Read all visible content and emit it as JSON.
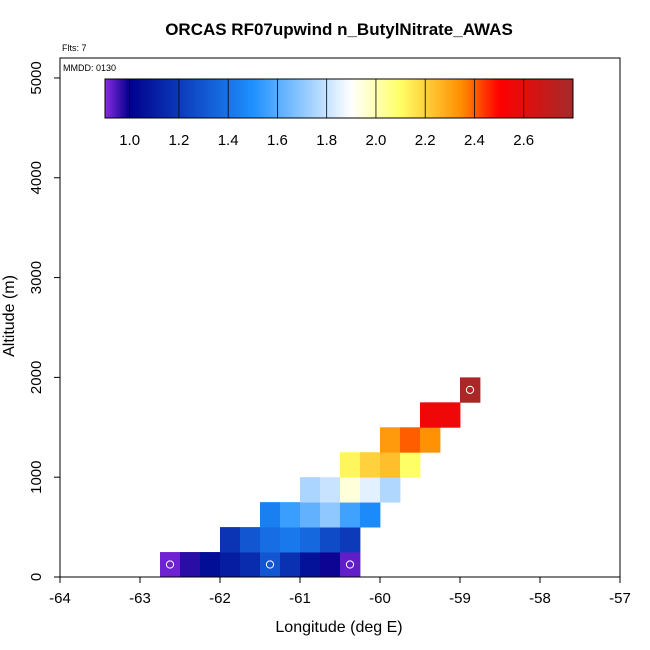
{
  "chart_data": {
    "type": "heatmap",
    "title": "ORCAS RF07upwind n_ButylNitrate_AWAS",
    "flights_note": "Flts: 7",
    "date_note": "MMDD: 0130",
    "xlabel": "Longitude (deg E)",
    "ylabel": "Altitude (m)",
    "xlim": [
      -64,
      -57
    ],
    "ylim": [
      0,
      5200
    ],
    "xticks": [
      -64,
      -63,
      -62,
      -61,
      -60,
      -59,
      -58,
      -57
    ],
    "yticks": [
      0,
      1000,
      2000,
      3000,
      4000,
      5000
    ],
    "cell_size": {
      "lon": 0.25,
      "alt": 250
    },
    "colorbar": {
      "range": [
        0.9,
        2.8
      ],
      "ticks": [
        1.0,
        1.2,
        1.4,
        1.6,
        1.8,
        2.0,
        2.2,
        2.4,
        2.6
      ],
      "tick_labels": [
        "1.0",
        "1.2",
        "1.4",
        "1.6",
        "1.8",
        "2.0",
        "2.2",
        "2.4",
        "2.6"
      ],
      "colors": [
        "#8a2be2",
        "#00008b",
        "#1e90ff",
        "#ffffff",
        "#ffff66",
        "#ff8c00",
        "#ff0000",
        "#a52a2a"
      ],
      "color_stops": [
        0.9,
        1.0,
        1.5,
        1.9,
        2.1,
        2.35,
        2.5,
        2.8
      ]
    },
    "cells": [
      {
        "lon": -62.625,
        "alt": 125,
        "value": 0.92,
        "sample": true
      },
      {
        "lon": -62.375,
        "alt": 125,
        "value": 0.97
      },
      {
        "lon": -62.125,
        "alt": 125,
        "value": 1.05
      },
      {
        "lon": -61.875,
        "alt": 125,
        "value": 1.1
      },
      {
        "lon": -61.625,
        "alt": 125,
        "value": 1.15
      },
      {
        "lon": -61.375,
        "alt": 125,
        "value": 1.3,
        "sample": true
      },
      {
        "lon": -61.125,
        "alt": 125,
        "value": 1.17
      },
      {
        "lon": -60.875,
        "alt": 125,
        "value": 1.06
      },
      {
        "lon": -60.625,
        "alt": 125,
        "value": 0.99
      },
      {
        "lon": -60.375,
        "alt": 125,
        "value": 0.93,
        "sample": true
      },
      {
        "lon": -61.875,
        "alt": 375,
        "value": 1.18
      },
      {
        "lon": -61.625,
        "alt": 375,
        "value": 1.3
      },
      {
        "lon": -61.375,
        "alt": 375,
        "value": 1.38
      },
      {
        "lon": -61.125,
        "alt": 375,
        "value": 1.42
      },
      {
        "lon": -60.875,
        "alt": 375,
        "value": 1.36
      },
      {
        "lon": -60.625,
        "alt": 375,
        "value": 1.26
      },
      {
        "lon": -60.375,
        "alt": 375,
        "value": 1.2
      },
      {
        "lon": -61.375,
        "alt": 625,
        "value": 1.44
      },
      {
        "lon": -61.125,
        "alt": 625,
        "value": 1.55
      },
      {
        "lon": -60.875,
        "alt": 625,
        "value": 1.62
      },
      {
        "lon": -60.625,
        "alt": 625,
        "value": 1.7
      },
      {
        "lon": -60.375,
        "alt": 625,
        "value": 1.56
      },
      {
        "lon": -60.125,
        "alt": 625,
        "value": 1.48
      },
      {
        "lon": -60.875,
        "alt": 875,
        "value": 1.75
      },
      {
        "lon": -60.625,
        "alt": 875,
        "value": 1.8
      },
      {
        "lon": -60.375,
        "alt": 875,
        "value": 1.95
      },
      {
        "lon": -60.125,
        "alt": 875,
        "value": 1.85
      },
      {
        "lon": -59.875,
        "alt": 875,
        "value": 1.76
      },
      {
        "lon": -60.375,
        "alt": 1125,
        "value": 2.12
      },
      {
        "lon": -60.125,
        "alt": 1125,
        "value": 2.2
      },
      {
        "lon": -59.875,
        "alt": 1125,
        "value": 2.24
      },
      {
        "lon": -59.625,
        "alt": 1125,
        "value": 2.1
      },
      {
        "lon": -59.875,
        "alt": 1375,
        "value": 2.32
      },
      {
        "lon": -59.625,
        "alt": 1375,
        "value": 2.4
      },
      {
        "lon": -59.375,
        "alt": 1375,
        "value": 2.34
      },
      {
        "lon": -59.375,
        "alt": 1625,
        "value": 2.55
      },
      {
        "lon": -59.125,
        "alt": 1625,
        "value": 2.55
      },
      {
        "lon": -58.875,
        "alt": 1875,
        "value": 2.78,
        "sample": true
      }
    ]
  }
}
